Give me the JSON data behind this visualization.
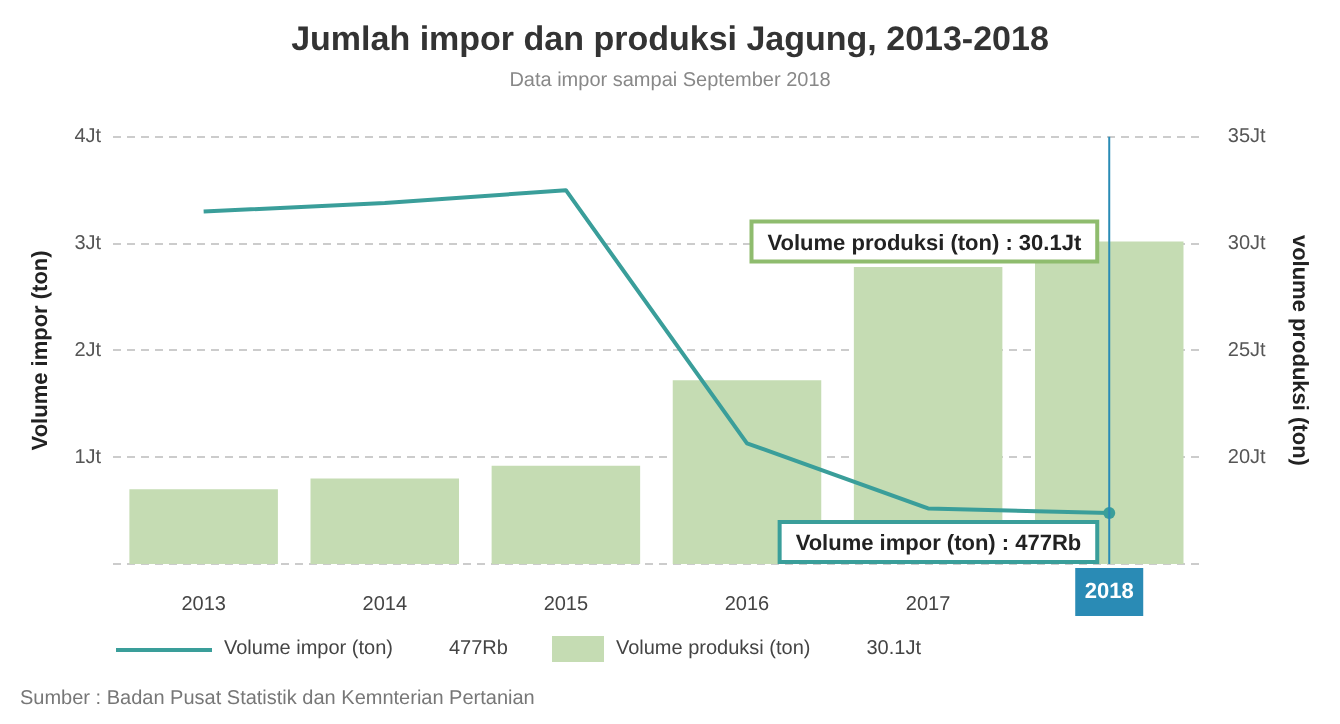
{
  "chart_data": {
    "type": "bar",
    "title": "Jumlah impor dan produksi Jagung, 2013-2018",
    "subtitle": "Data impor sampai September 2018",
    "ylabel": "Volume impor (ton)",
    "y2label": "volume produksi (ton)",
    "categories": [
      "2013",
      "2014",
      "2015",
      "2016",
      "2017",
      "2018"
    ],
    "series": [
      {
        "name": "Volume impor (ton)",
        "type": "line",
        "color": "#3a9e9a",
        "values": [
          3.3,
          3.38,
          3.5,
          1.13,
          0.52,
          0.477
        ]
      },
      {
        "name": "Volume produksi (ton)",
        "axis": "y2",
        "color": "#c5dcb3",
        "values": [
          18.5,
          19.0,
          19.6,
          23.6,
          28.9,
          30.1
        ]
      }
    ],
    "ylim": [
      0,
      4
    ],
    "yticks": [
      {
        "value": 0,
        "label": null
      },
      {
        "value": 1,
        "label": "1Jt"
      },
      {
        "value": 2,
        "label": "2Jt"
      },
      {
        "value": 3,
        "label": "3Jt"
      },
      {
        "value": 4,
        "label": "4Jt"
      }
    ],
    "y2lim": [
      15,
      35
    ],
    "y2ticks": [
      {
        "value": 15,
        "label": null
      },
      {
        "value": 20,
        "label": "20Jt"
      },
      {
        "value": 25,
        "label": "25Jt"
      },
      {
        "value": 30,
        "label": "30Jt"
      },
      {
        "value": 35,
        "label": "35Jt"
      }
    ],
    "grid": "y",
    "legend": "bottom",
    "marker": "none",
    "line_style": "solid",
    "ref_lines": [
      {
        "axis": "x",
        "value": "2018",
        "color": "#2a8bb5"
      }
    ],
    "annotations": [
      "Volume impor (ton) : 477Rb",
      "Volume produksi (ton) : 30.1Jt",
      "477Rb",
      "30.1Jt",
      "Sumber : Badan Pusat Statistik dan Kemnterian Pertanian"
    ]
  }
}
